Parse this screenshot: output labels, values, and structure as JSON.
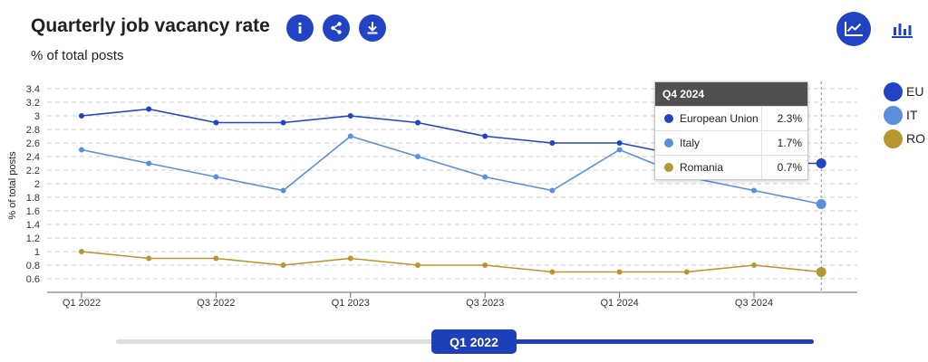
{
  "header": {
    "title": "Quarterly job vacancy rate",
    "subtitle": "% of total posts",
    "info_icon": "info-icon",
    "share_icon": "share-icon",
    "download_icon": "download-icon",
    "line_chart_icon": "line-chart-icon",
    "bar_chart_icon": "bar-chart-icon"
  },
  "tooltip": {
    "title": "Q4 2024",
    "rows": [
      {
        "name": "European Union",
        "value": "2.3%",
        "color": "#2244c4"
      },
      {
        "name": "Italy",
        "value": "1.7%",
        "color": "#5a8fdc"
      },
      {
        "name": "Romania",
        "value": "0.7%",
        "color": "#b8962e"
      }
    ]
  },
  "legend": [
    {
      "label": "EU",
      "color": "#2244c4"
    },
    {
      "label": "IT",
      "color": "#5a8fdc"
    },
    {
      "label": "RO",
      "color": "#b8962e"
    }
  ],
  "slider": {
    "label": "Q1 2022"
  },
  "chart_data": {
    "type": "line",
    "ylabel": "% of total posts",
    "ylim": [
      0.6,
      3.4
    ],
    "yticks": [
      "3.4",
      "3.2",
      "3",
      "2.8",
      "2.6",
      "2.4",
      "2.2",
      "2",
      "1.8",
      "1.6",
      "1.4",
      "1.2",
      "1",
      "0.8",
      "0.6"
    ],
    "x": [
      "Q1 2022",
      "Q2 2022",
      "Q3 2022",
      "Q4 2022",
      "Q1 2023",
      "Q2 2023",
      "Q3 2023",
      "Q4 2023",
      "Q1 2024",
      "Q2 2024",
      "Q3 2024",
      "Q4 2024"
    ],
    "xtick_labels": [
      "Q1 2022",
      "Q3 2022",
      "Q1 2023",
      "Q3 2023",
      "Q1 2024",
      "Q3 2024"
    ],
    "xtick_indices": [
      0,
      2,
      4,
      6,
      8,
      10
    ],
    "highlight_index": 11,
    "grid": true,
    "series": [
      {
        "name": "European Union",
        "color": "#2244c4",
        "values": [
          3.0,
          3.1,
          2.9,
          2.9,
          3.0,
          2.9,
          2.7,
          2.6,
          2.6,
          2.4,
          2.3,
          2.3
        ]
      },
      {
        "name": "Italy",
        "color": "#5a8fdc",
        "values": [
          2.5,
          2.3,
          2.1,
          1.9,
          2.7,
          2.4,
          2.1,
          1.9,
          2.5,
          2.1,
          1.9,
          1.7
        ]
      },
      {
        "name": "Romania",
        "color": "#b8962e",
        "values": [
          1.0,
          0.9,
          0.9,
          0.8,
          0.9,
          0.8,
          0.8,
          0.7,
          0.7,
          0.7,
          0.8,
          0.7
        ]
      }
    ]
  }
}
